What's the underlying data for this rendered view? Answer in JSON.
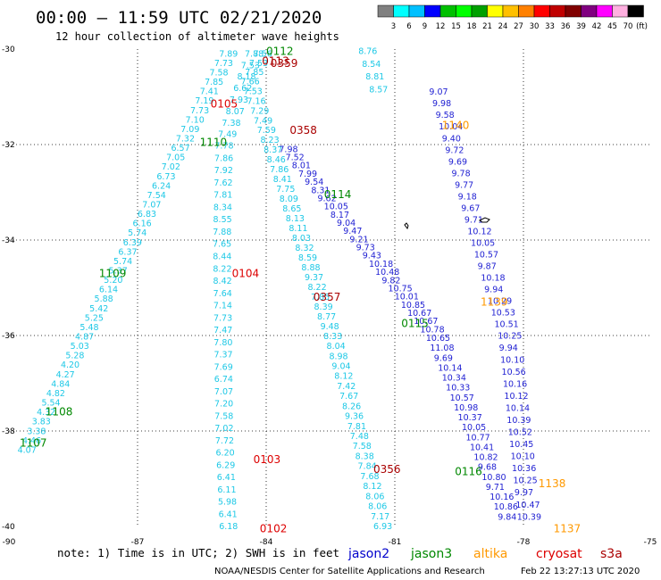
{
  "header": {
    "title": "00:00 – 11:59 UTC 02/21/2020",
    "subtitle": "12 hour collection of altimeter wave heights"
  },
  "colorbar": {
    "unit": "(ft)",
    "colors": [
      "#808080",
      "#00ffff",
      "#00c0ff",
      "#0000ff",
      "#00c000",
      "#00ff00",
      "#00a000",
      "#ffff00",
      "#ffc000",
      "#ff8000",
      "#ff0000",
      "#c00000",
      "#800000",
      "#800080",
      "#ff00ff",
      "#ffb0e0",
      "#000000"
    ],
    "labels": [
      "3",
      "6",
      "9",
      "12",
      "15",
      "18",
      "21",
      "24",
      "27",
      "30",
      "33",
      "36",
      "39",
      "42",
      "45",
      "70"
    ]
  },
  "axes": {
    "lat_ticks": [
      "-30",
      "-32",
      "-34",
      "-36",
      "-38",
      "-40"
    ],
    "lon_ticks": [
      "-90",
      "-87",
      "-84",
      "-81",
      "-78",
      "-75"
    ]
  },
  "footer": {
    "note": "note: 1) Time is in UTC; 2) SWH is in feet",
    "legend": [
      {
        "name": "jason2",
        "color": "#0000cc"
      },
      {
        "name": "jason3",
        "color": "#008800"
      },
      {
        "name": "altika",
        "color": "#ff9900"
      },
      {
        "name": "cryosat",
        "color": "#dd0000"
      },
      {
        "name": "s3a",
        "color": "#aa0000"
      }
    ],
    "credit": "NOAA/NESDIS Center for Satellite Applications and Research",
    "stamp": "Feb 22 13:27:13 UTC 2020"
  },
  "tracks": [
    {
      "name": "jason3 0112 ascending",
      "color": "#1ec8e6",
      "values": [
        "4.07",
        "4.46",
        "3.38",
        "3.83",
        "4.32",
        "5.54",
        "4.82",
        "4.84",
        "4.27",
        "4.20",
        "5.28",
        "5.03",
        "4.87",
        "5.48",
        "5.25",
        "5.42",
        "5.88",
        "6.14",
        "5.20",
        "5.37",
        "5.74",
        "6.37",
        "6.39",
        "5.74",
        "6.16",
        "6.83",
        "7.07",
        "7.54",
        "6.24",
        "6.73",
        "7.02",
        "7.05",
        "6.57",
        "7.32",
        "7.09",
        "7.10",
        "7.73",
        "7.19",
        "7.41",
        "7.85",
        "7.58",
        "7.73",
        "7.89"
      ]
    },
    {
      "name": "jason3 0112 descending",
      "color": "#1ec8e6",
      "values": [
        "7.88",
        "7.53",
        "8.18",
        "6.62",
        "7.93",
        "8.07",
        "7.38",
        "7.49",
        "7.78",
        "7.86",
        "7.92",
        "7.62",
        "7.81",
        "8.34",
        "8.55",
        "7.88",
        "7.65",
        "8.44",
        "8.22",
        "8.42",
        "7.64",
        "7.14",
        "7.73",
        "7.47",
        "7.80",
        "7.37",
        "7.69",
        "6.74",
        "7.07",
        "7.20",
        "7.58",
        "7.02",
        "7.72",
        "6.20",
        "6.29",
        "6.41",
        "6.11",
        "5.98",
        "6.41",
        "6.18"
      ]
    },
    {
      "name": "jason3 0113",
      "color": "#1ec8e6",
      "values": [
        "7.56",
        "7.53",
        "7.85",
        "7.66",
        "7.53",
        "7.16",
        "7.29",
        "7.49",
        "7.59",
        "8.23",
        "8.37",
        "8.46",
        "7.86",
        "8.41",
        "7.75",
        "8.09",
        "8.65",
        "8.13",
        "8.11",
        "8.03",
        "8.32",
        "8.59",
        "8.88",
        "9.37",
        "8.22",
        "7.85",
        "8.39",
        "8.77",
        "9.48",
        "8.33",
        "8.04",
        "8.98",
        "9.04",
        "8.12",
        "7.42",
        "7.67",
        "8.26",
        "9.36",
        "7.81",
        "7.48",
        "7.58",
        "8.38",
        "7.84",
        "7.68",
        "8.12",
        "8.06",
        "8.06",
        "7.17",
        "6.93"
      ]
    },
    {
      "name": "jason2 0114",
      "color": "#1e1ed2",
      "values": [
        "7.98",
        "7.52",
        "8.01",
        "7.99",
        "9.54",
        "8.31",
        "9.62",
        "10.05",
        "8.17",
        "9.04",
        "9.47",
        "9.21",
        "9.73",
        "9.43",
        "10.18",
        "10.48",
        "9.82",
        "10.75",
        "10.01",
        "10.85",
        "10.67",
        "10.67",
        "10.78",
        "10.65",
        "11.08",
        "9.69",
        "10.14",
        "10.34",
        "10.33",
        "10.57",
        "10.98",
        "10.37",
        "10.05",
        "10.77",
        "10.41",
        "10.82",
        "9.68",
        "10.80",
        "9.71",
        "10.16",
        "10.86",
        "9.84"
      ]
    },
    {
      "name": "jason2 0115",
      "color": "#1e1ed2",
      "values": [
        "9.07",
        "9.98",
        "9.58",
        "10.04",
        "9.40",
        "9.72",
        "9.69",
        "9.78",
        "9.77",
        "9.18",
        "9.67",
        "9.71",
        "10.12",
        "10.05",
        "10.57",
        "9.87",
        "10.18",
        "9.94",
        "10.29",
        "10.53",
        "10.51",
        "10.25",
        "9.94",
        "10.10",
        "10.56",
        "10.16",
        "10.12",
        "10.14",
        "10.39",
        "10.52",
        "10.45",
        "10.10",
        "10.36",
        "10.25",
        "9.97",
        "10.47",
        "10.39"
      ]
    },
    {
      "name": "jason2 0115 north",
      "color": "#1ec8e6",
      "values": [
        "8.76",
        "8.54",
        "8.81",
        "8.57"
      ]
    }
  ],
  "passes": [
    {
      "label": "0112",
      "color": "#008800",
      "lon": -84.0,
      "lat": -30.05
    },
    {
      "label": "0113",
      "color": "#aa0000",
      "lon": -84.1,
      "lat": -30.25
    },
    {
      "label": "0359",
      "color": "#aa0000",
      "lon": -83.9,
      "lat": -30.3
    },
    {
      "label": "0105",
      "color": "#dd0000",
      "lon": -85.3,
      "lat": -31.15
    },
    {
      "label": "0358",
      "color": "#aa0000",
      "lon": -83.45,
      "lat": -31.7
    },
    {
      "label": "1110",
      "color": "#008800",
      "lon": -85.55,
      "lat": -31.95
    },
    {
      "label": "1140",
      "color": "#ff9900",
      "lon": -79.9,
      "lat": -31.6
    },
    {
      "label": "0114",
      "color": "#008800",
      "lon": -82.65,
      "lat": -33.05
    },
    {
      "label": "1109",
      "color": "#008800",
      "lon": -87.9,
      "lat": -34.7
    },
    {
      "label": "0104",
      "color": "#dd0000",
      "lon": -84.8,
      "lat": -34.7
    },
    {
      "label": "0357",
      "color": "#aa0000",
      "lon": -82.9,
      "lat": -35.2
    },
    {
      "label": "1139",
      "color": "#ff9900",
      "lon": -79.0,
      "lat": -35.3
    },
    {
      "label": "0115",
      "color": "#008800",
      "lon": -80.85,
      "lat": -35.75
    },
    {
      "label": "1108",
      "color": "#008800",
      "lon": -89.15,
      "lat": -37.6
    },
    {
      "label": "1107",
      "color": "#008800",
      "lon": -89.75,
      "lat": -38.25
    },
    {
      "label": "0103",
      "color": "#dd0000",
      "lon": -84.3,
      "lat": -38.6
    },
    {
      "label": "0356",
      "color": "#aa0000",
      "lon": -81.5,
      "lat": -38.8
    },
    {
      "label": "0116",
      "color": "#008800",
      "lon": -79.6,
      "lat": -38.85
    },
    {
      "label": "1138",
      "color": "#ff9900",
      "lon": -77.65,
      "lat": -39.1
    },
    {
      "label": "0102",
      "color": "#dd0000",
      "lon": -84.15,
      "lat": -40.05
    },
    {
      "label": "1137",
      "color": "#ff9900",
      "lon": -77.3,
      "lat": -40.05
    }
  ]
}
